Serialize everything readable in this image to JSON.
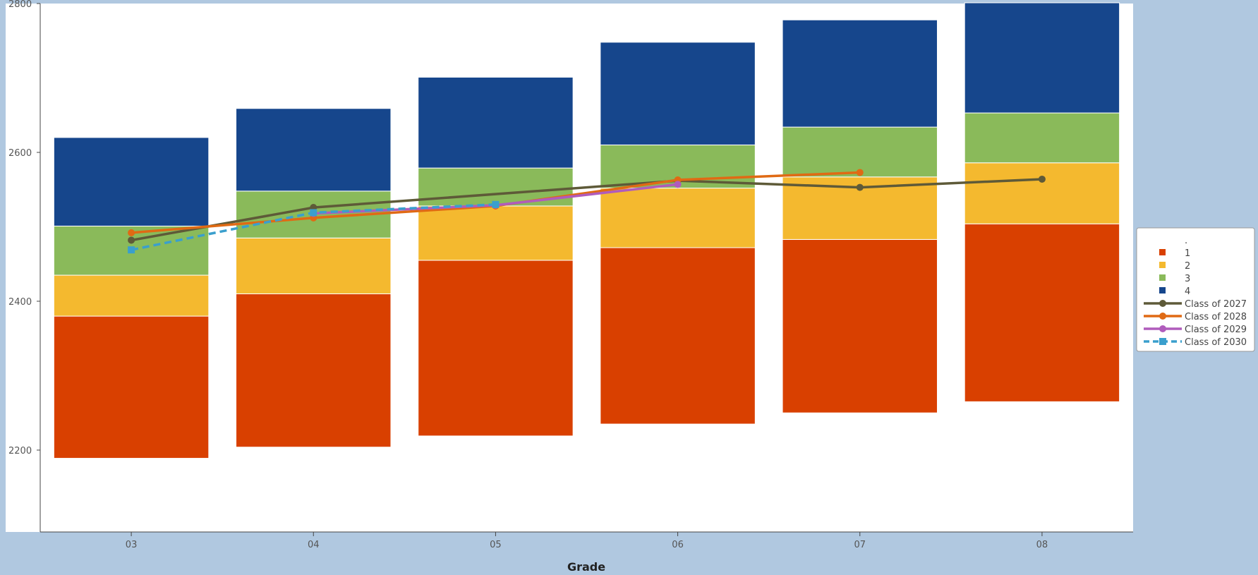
{
  "chart_data": {
    "type": "bar",
    "subtype": "floating-stacked-bar-with-lines",
    "xlabel": "Grade",
    "ylabel": "",
    "categories": [
      "03",
      "04",
      "05",
      "06",
      "07",
      "08"
    ],
    "ylim": [
      2090,
      2800
    ],
    "yticks": [
      2200,
      2400,
      2600,
      2800
    ],
    "grid": false,
    "legend_position": "right",
    "bands": [
      {
        "name": "1",
        "color": "#d94000",
        "ranges": [
          [
            2189,
            2380
          ],
          [
            2204,
            2410
          ],
          [
            2219,
            2455
          ],
          [
            2235,
            2472
          ],
          [
            2250,
            2483
          ],
          [
            2265,
            2504
          ]
        ]
      },
      {
        "name": "2",
        "color": "#f4b92f",
        "ranges": [
          [
            2380,
            2435
          ],
          [
            2410,
            2485
          ],
          [
            2455,
            2528
          ],
          [
            2472,
            2552
          ],
          [
            2483,
            2567
          ],
          [
            2504,
            2586
          ]
        ]
      },
      {
        "name": "3",
        "color": "#8aba5a",
        "ranges": [
          [
            2435,
            2501
          ],
          [
            2485,
            2548
          ],
          [
            2528,
            2579
          ],
          [
            2552,
            2610
          ],
          [
            2567,
            2634
          ],
          [
            2586,
            2653
          ]
        ]
      },
      {
        "name": "4",
        "color": "#16468c",
        "ranges": [
          [
            2501,
            2620
          ],
          [
            2548,
            2659
          ],
          [
            2579,
            2701
          ],
          [
            2610,
            2748
          ],
          [
            2634,
            2778
          ],
          [
            2653,
            2801
          ]
        ]
      }
    ],
    "series": [
      {
        "name": "Class of 2027",
        "color": "#5e5a38",
        "marker": "circle",
        "dashed": false,
        "values": [
          2482,
          2526,
          null,
          2562,
          2553,
          2564
        ]
      },
      {
        "name": "Class of 2028",
        "color": "#e06a14",
        "marker": "circle",
        "dashed": false,
        "values": [
          2492,
          2512,
          2528,
          2563,
          2573,
          null
        ]
      },
      {
        "name": "Class of 2029",
        "color": "#b05cbc",
        "marker": "circle",
        "dashed": false,
        "values": [
          null,
          2518,
          2529,
          2557,
          null,
          null
        ]
      },
      {
        "name": "Class of 2030",
        "color": "#3a9fcd",
        "marker": "square",
        "dashed": true,
        "values": [
          2469,
          2519,
          2530,
          null,
          null,
          null
        ]
      }
    ],
    "legend": [
      {
        "label": ".",
        "kind": "blank"
      },
      {
        "label": "1",
        "kind": "swatch",
        "color": "#d94000"
      },
      {
        "label": "2",
        "kind": "swatch",
        "color": "#f4b92f"
      },
      {
        "label": "3",
        "kind": "swatch",
        "color": "#8aba5a"
      },
      {
        "label": "4",
        "kind": "swatch",
        "color": "#16468c"
      },
      {
        "label": "Class of 2027",
        "kind": "line",
        "color": "#5e5a38",
        "marker": "circle",
        "dashed": false
      },
      {
        "label": "Class of 2028",
        "kind": "line",
        "color": "#e06a14",
        "marker": "circle",
        "dashed": false
      },
      {
        "label": "Class of 2029",
        "kind": "line",
        "color": "#b05cbc",
        "marker": "circle",
        "dashed": false
      },
      {
        "label": "Class of 2030",
        "kind": "line",
        "color": "#3a9fcd",
        "marker": "square",
        "dashed": true
      }
    ]
  }
}
